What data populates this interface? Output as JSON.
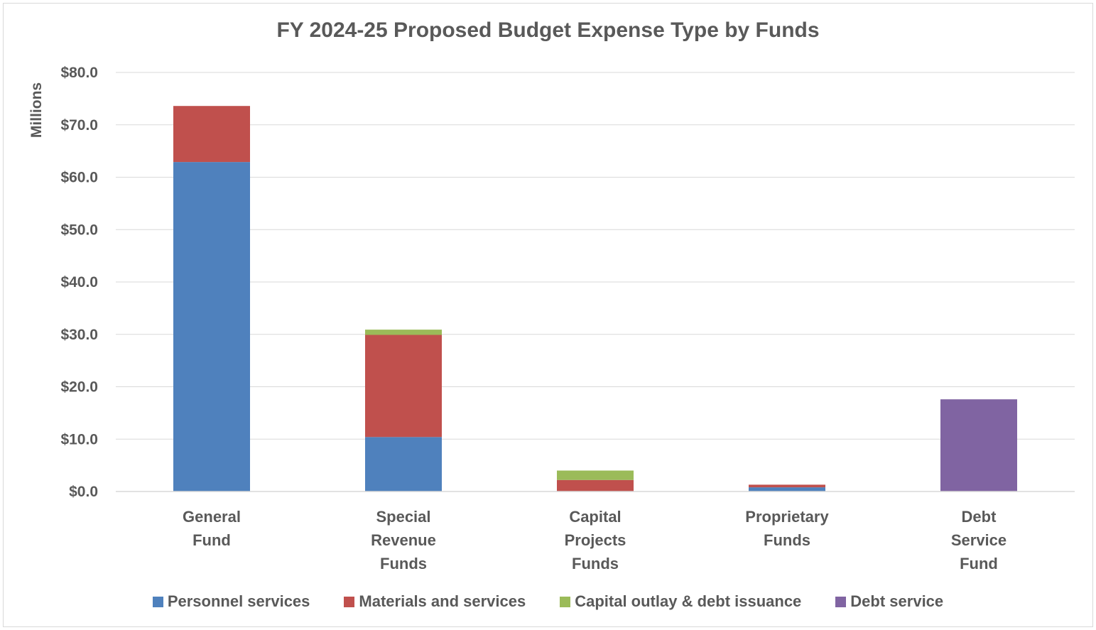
{
  "chart_data": {
    "type": "bar",
    "stacked": true,
    "title": "FY 2024-25 Proposed Budget Expense Type by Funds",
    "ylabel": "Millions",
    "xlabel": "",
    "ylim": [
      0,
      80
    ],
    "yticks": [
      "$0.0",
      "$10.0",
      "$20.0",
      "$30.0",
      "$40.0",
      "$50.0",
      "$60.0",
      "$70.0",
      "$80.0"
    ],
    "categories": [
      [
        "General",
        "Fund"
      ],
      [
        "Special",
        "Revenue",
        "Funds"
      ],
      [
        "Capital",
        "Projects",
        "Funds"
      ],
      [
        "Proprietary",
        "Funds"
      ],
      [
        "Debt",
        "Service",
        "Fund"
      ]
    ],
    "series": [
      {
        "name": "Personnel services",
        "color": "#4f81bd",
        "values": [
          62.9,
          10.4,
          0.0,
          0.8,
          0.0
        ]
      },
      {
        "name": "Materials and services",
        "color": "#c0504d",
        "values": [
          10.7,
          19.5,
          2.2,
          0.5,
          0.0
        ]
      },
      {
        "name": "Capital outlay & debt issuance",
        "color": "#9bbb59",
        "values": [
          0.0,
          1.0,
          1.8,
          0.0,
          0.0
        ]
      },
      {
        "name": "Debt service",
        "color": "#8064a2",
        "values": [
          0.0,
          0.0,
          0.0,
          0.0,
          17.6
        ]
      }
    ],
    "grid": true,
    "legend_position": "bottom"
  }
}
